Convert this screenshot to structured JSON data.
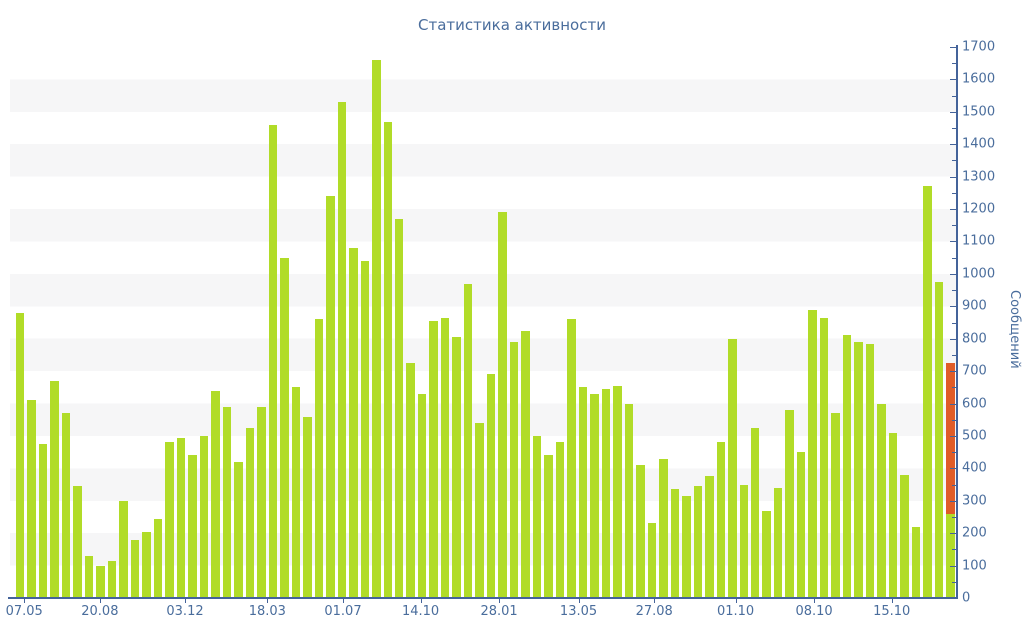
{
  "title": "Статистика активности",
  "colors": {
    "bar_green": "#b1dc28",
    "bar_orange": "#e05c28",
    "text_blue": "#4a6d9c",
    "axis_blue": "#44639a",
    "stripe_gray": "#f6f6f7"
  },
  "y_axis": {
    "title": "Сообщений",
    "min": 0,
    "max": 1700,
    "major_step": 100,
    "minor_step": 50
  },
  "x_axis": {
    "labels": [
      "07.05",
      "20.08",
      "03.12",
      "18.03",
      "01.07",
      "14.10",
      "28.01",
      "13.05",
      "27.08",
      "01.10",
      "08.10",
      "15.10"
    ],
    "positions_pct": [
      1.5,
      9.5,
      18.5,
      27.2,
      35.2,
      43.4,
      51.7,
      60.1,
      68.1,
      76.7,
      85.0,
      93.2
    ]
  },
  "chart_data": {
    "type": "bar",
    "title": "Статистика активности",
    "ylabel": "Сообщений",
    "ylim": [
      0,
      1700
    ],
    "grid": "striped-bands-every-100",
    "legend": "none",
    "values": [
      880,
      610,
      475,
      670,
      570,
      345,
      130,
      100,
      115,
      300,
      180,
      205,
      245,
      480,
      495,
      440,
      500,
      640,
      590,
      420,
      525,
      590,
      1460,
      1050,
      650,
      560,
      860,
      1240,
      1530,
      1080,
      1040,
      1660,
      1470,
      1170,
      725,
      630,
      855,
      865,
      805,
      970,
      540,
      690,
      1190,
      790,
      825,
      500,
      440,
      480,
      860,
      650,
      630,
      645,
      655,
      600,
      410,
      230,
      430,
      335,
      315,
      345,
      375,
      480,
      800,
      350,
      525,
      270,
      340,
      580,
      450,
      890,
      865,
      570,
      810,
      790,
      785,
      600,
      510,
      380,
      220,
      1270,
      975,
      726
    ],
    "highlight_bar": {
      "index": 81,
      "base_value": 260,
      "total_value": 726,
      "base_color": "#b1dc28",
      "top_color": "#e05c28",
      "note": "last bar is stacked: green base, orange top"
    },
    "x_tick_labels": [
      "07.05",
      "20.08",
      "03.12",
      "18.03",
      "01.07",
      "14.10",
      "28.01",
      "13.05",
      "27.08",
      "01.10",
      "08.10",
      "15.10"
    ]
  }
}
